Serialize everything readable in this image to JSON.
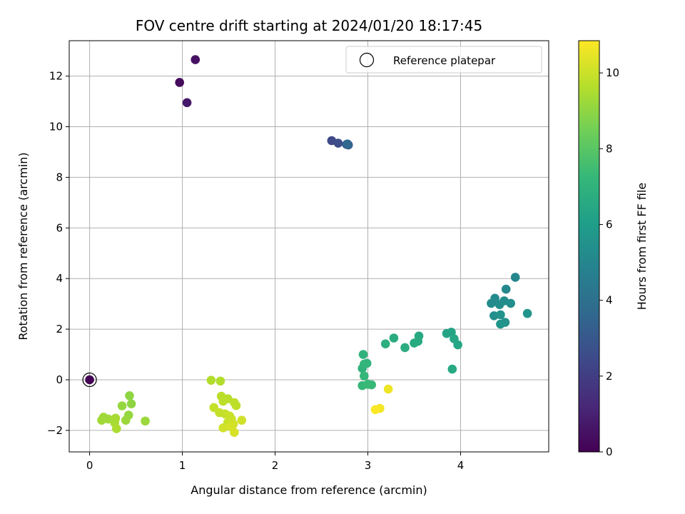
{
  "chart_data": {
    "type": "scatter",
    "title": "FOV centre drift starting at 2024/01/20 18:17:45",
    "xlabel": "Angular distance from reference (arcmin)",
    "ylabel": "Rotation from reference (arcmin)",
    "xlim": [
      -0.22,
      4.95
    ],
    "ylim": [
      -2.85,
      13.4
    ],
    "xticks": [
      0,
      1,
      2,
      3,
      4
    ],
    "yticks": [
      -2,
      0,
      2,
      4,
      6,
      8,
      10,
      12
    ],
    "grid": true,
    "legend": {
      "position": "top-right",
      "entries": [
        "Reference platepar"
      ]
    },
    "colorbar": {
      "label": "Hours from first FF file",
      "range": [
        0,
        10.85
      ],
      "ticks": [
        0,
        2,
        4,
        6,
        8,
        10
      ],
      "colormap": "viridis"
    },
    "reference_point": {
      "x": 0,
      "y": 0,
      "hours": 0
    },
    "points": [
      {
        "x": 0.97,
        "y": 11.75,
        "hours": 0.3
      },
      {
        "x": 1.14,
        "y": 12.65,
        "hours": 0.5
      },
      {
        "x": 1.05,
        "y": 10.95,
        "hours": 0.7
      },
      {
        "x": 2.61,
        "y": 9.45,
        "hours": 2.4
      },
      {
        "x": 2.68,
        "y": 9.35,
        "hours": 2.6
      },
      {
        "x": 2.77,
        "y": 9.3,
        "hours": 2.9
      },
      {
        "x": 2.79,
        "y": 9.28,
        "hours": 3.2
      },
      {
        "x": 2.78,
        "y": 9.32,
        "hours": 3.6
      },
      {
        "x": 4.59,
        "y": 4.05,
        "hours": 5.0
      },
      {
        "x": 4.49,
        "y": 3.58,
        "hours": 5.1
      },
      {
        "x": 4.37,
        "y": 3.22,
        "hours": 5.2
      },
      {
        "x": 4.33,
        "y": 3.02,
        "hours": 5.2
      },
      {
        "x": 4.47,
        "y": 3.12,
        "hours": 5.3
      },
      {
        "x": 4.42,
        "y": 2.97,
        "hours": 5.3
      },
      {
        "x": 4.54,
        "y": 3.02,
        "hours": 5.4
      },
      {
        "x": 4.36,
        "y": 2.53,
        "hours": 5.4
      },
      {
        "x": 4.43,
        "y": 2.57,
        "hours": 5.5
      },
      {
        "x": 4.48,
        "y": 2.27,
        "hours": 5.5
      },
      {
        "x": 4.43,
        "y": 2.2,
        "hours": 5.6
      },
      {
        "x": 4.72,
        "y": 2.62,
        "hours": 5.6
      },
      {
        "x": 3.85,
        "y": 1.83,
        "hours": 6.3
      },
      {
        "x": 3.9,
        "y": 1.88,
        "hours": 6.3
      },
      {
        "x": 3.93,
        "y": 1.62,
        "hours": 6.4
      },
      {
        "x": 3.97,
        "y": 1.38,
        "hours": 6.4
      },
      {
        "x": 3.91,
        "y": 0.42,
        "hours": 6.5
      },
      {
        "x": 3.55,
        "y": 1.73,
        "hours": 6.5
      },
      {
        "x": 3.5,
        "y": 1.45,
        "hours": 6.6
      },
      {
        "x": 3.54,
        "y": 1.52,
        "hours": 6.6
      },
      {
        "x": 3.4,
        "y": 1.27,
        "hours": 6.7
      },
      {
        "x": 3.28,
        "y": 1.65,
        "hours": 6.7
      },
      {
        "x": 3.19,
        "y": 1.42,
        "hours": 6.8
      },
      {
        "x": 2.95,
        "y": 1.0,
        "hours": 7.0
      },
      {
        "x": 2.94,
        "y": 0.45,
        "hours": 7.0
      },
      {
        "x": 2.99,
        "y": 0.65,
        "hours": 7.1
      },
      {
        "x": 2.96,
        "y": 0.62,
        "hours": 7.1
      },
      {
        "x": 2.96,
        "y": 0.15,
        "hours": 7.2
      },
      {
        "x": 2.94,
        "y": -0.23,
        "hours": 7.2
      },
      {
        "x": 3.0,
        "y": -0.18,
        "hours": 7.3
      },
      {
        "x": 3.04,
        "y": -0.2,
        "hours": 7.3
      },
      {
        "x": 0.43,
        "y": -0.63,
        "hours": 9.0
      },
      {
        "x": 0.45,
        "y": -0.95,
        "hours": 9.0
      },
      {
        "x": 0.35,
        "y": -1.03,
        "hours": 9.1
      },
      {
        "x": 0.42,
        "y": -1.4,
        "hours": 9.1
      },
      {
        "x": 0.39,
        "y": -1.6,
        "hours": 9.2
      },
      {
        "x": 0.6,
        "y": -1.63,
        "hours": 9.2
      },
      {
        "x": 0.15,
        "y": -1.48,
        "hours": 9.3
      },
      {
        "x": 0.2,
        "y": -1.55,
        "hours": 9.3
      },
      {
        "x": 0.13,
        "y": -1.6,
        "hours": 9.3
      },
      {
        "x": 0.28,
        "y": -1.52,
        "hours": 9.4
      },
      {
        "x": 0.27,
        "y": -1.7,
        "hours": 9.4
      },
      {
        "x": 0.29,
        "y": -1.93,
        "hours": 9.5
      },
      {
        "x": 1.31,
        "y": -0.02,
        "hours": 9.6
      },
      {
        "x": 1.41,
        "y": -0.05,
        "hours": 9.6
      },
      {
        "x": 1.42,
        "y": -0.65,
        "hours": 9.7
      },
      {
        "x": 1.49,
        "y": -0.75,
        "hours": 9.7
      },
      {
        "x": 1.44,
        "y": -0.85,
        "hours": 9.8
      },
      {
        "x": 1.56,
        "y": -0.9,
        "hours": 9.8
      },
      {
        "x": 1.58,
        "y": -1.02,
        "hours": 9.8
      },
      {
        "x": 1.34,
        "y": -1.1,
        "hours": 9.9
      },
      {
        "x": 1.4,
        "y": -1.3,
        "hours": 9.9
      },
      {
        "x": 1.46,
        "y": -1.35,
        "hours": 9.9
      },
      {
        "x": 1.51,
        "y": -1.43,
        "hours": 10.0
      },
      {
        "x": 1.53,
        "y": -1.55,
        "hours": 10.0
      },
      {
        "x": 1.49,
        "y": -1.68,
        "hours": 10.0
      },
      {
        "x": 1.64,
        "y": -1.6,
        "hours": 10.1
      },
      {
        "x": 1.55,
        "y": -1.75,
        "hours": 10.1
      },
      {
        "x": 1.44,
        "y": -1.9,
        "hours": 10.1
      },
      {
        "x": 1.52,
        "y": -1.85,
        "hours": 10.2
      },
      {
        "x": 1.56,
        "y": -2.08,
        "hours": 10.2
      },
      {
        "x": 3.22,
        "y": -0.37,
        "hours": 10.6
      },
      {
        "x": 3.13,
        "y": -1.13,
        "hours": 10.7
      },
      {
        "x": 3.08,
        "y": -1.18,
        "hours": 10.8
      }
    ]
  }
}
